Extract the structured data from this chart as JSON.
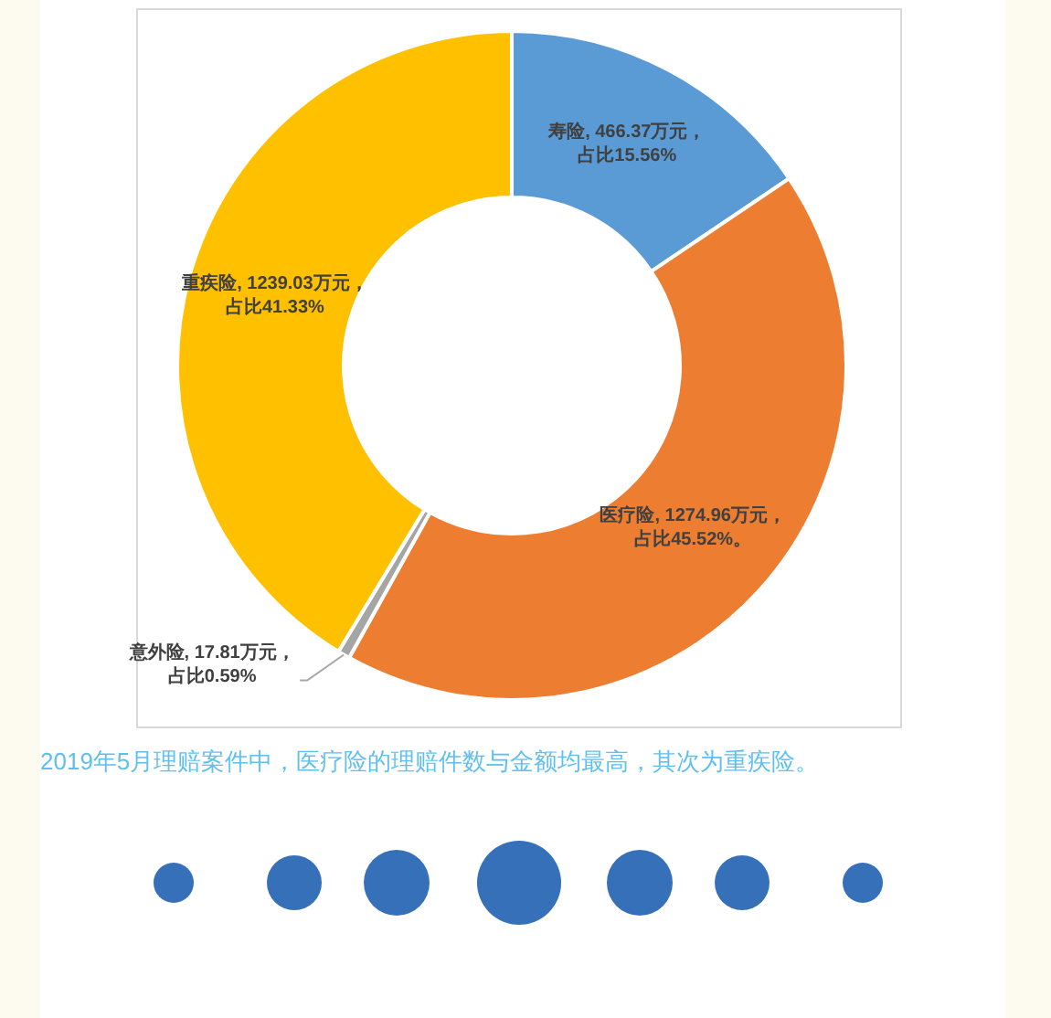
{
  "chart_data": {
    "type": "donut",
    "categories": [
      "寿险",
      "医疗险",
      "意外险",
      "重疾险"
    ],
    "values": [
      466.37,
      1274.96,
      17.81,
      1239.03
    ],
    "colors": [
      "#5b9bd5",
      "#ed7d31",
      "#a5a5a5",
      "#ffc000"
    ],
    "value_labels": [
      ", 466.37万元，占比15.56%",
      ", 1274.96万元，占比45.52%。",
      ", 17.81万元，占比0.59%",
      ", 1239.03万元，占比41.33%"
    ],
    "annotations": [
      "2019年5月理赔案件中，医疗险的理赔件数与金额均最高，其次为重疾险。"
    ]
  }
}
